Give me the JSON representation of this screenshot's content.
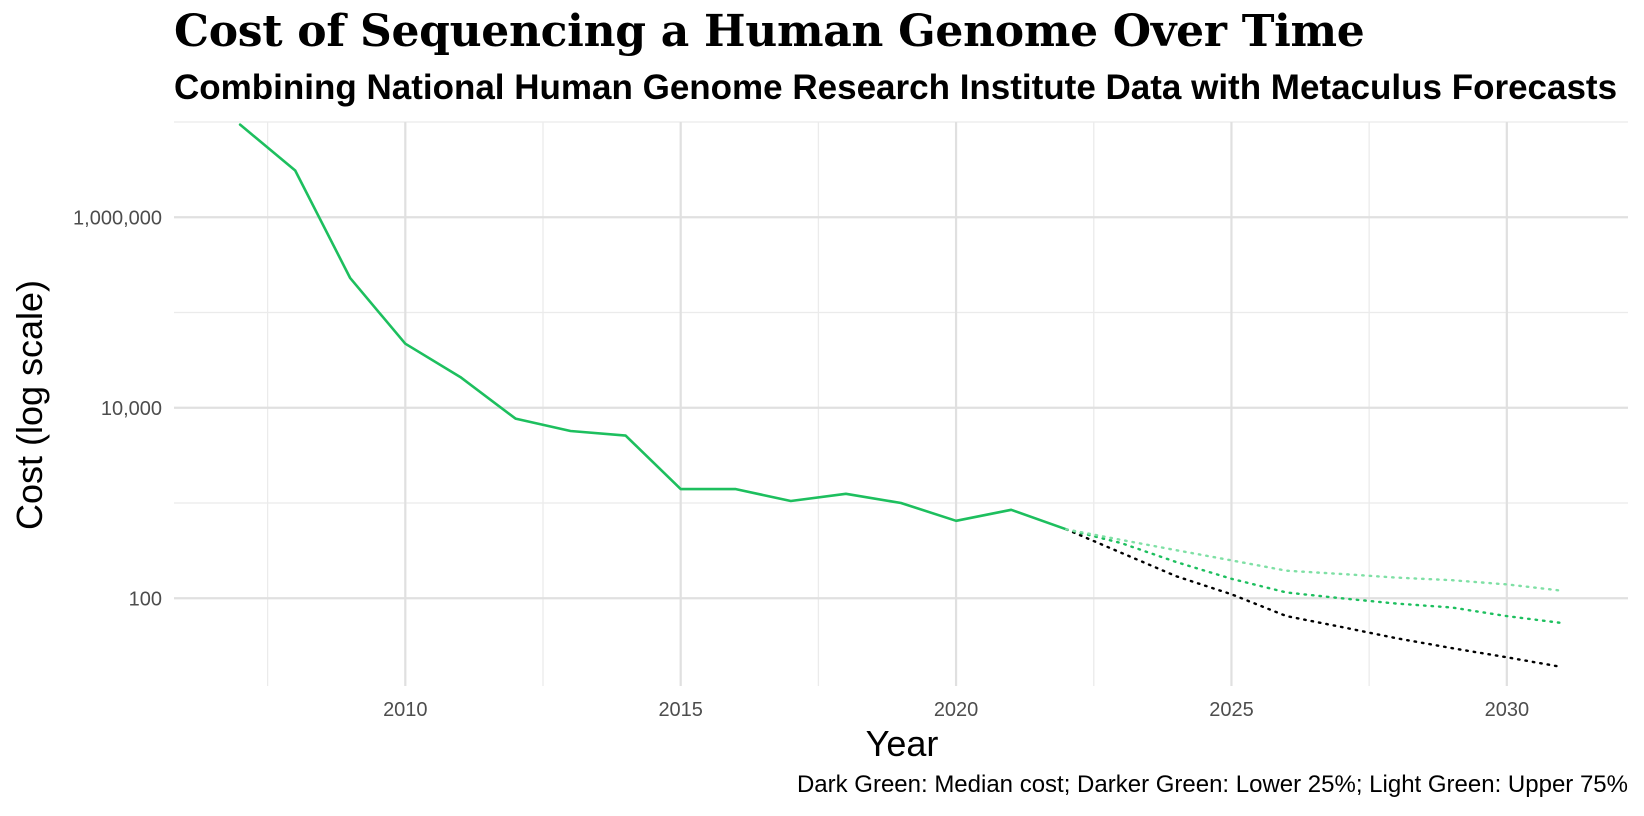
{
  "title": "Cost of Sequencing a Human Genome Over Time",
  "subtitle": "Combining National Human Genome Research Institute Data with Metaculus Forecasts",
  "caption": "Dark Green: Median cost; Darker Green: Lower 25%; Light Green: Upper 75%",
  "chart_data": {
    "type": "line",
    "xlabel": "Year",
    "ylabel": "Cost (log scale)",
    "y_scale": "log10",
    "xlim": [
      2005.8,
      2032.2
    ],
    "ylim": [
      12,
      10000000
    ],
    "x_ticks": [
      2010,
      2015,
      2020,
      2025,
      2030
    ],
    "x_tick_labels": [
      "2010",
      "2015",
      "2020",
      "2025",
      "2030"
    ],
    "y_ticks": [
      100,
      10000,
      1000000
    ],
    "y_tick_labels": [
      "100",
      "10,000",
      "1,000,000"
    ],
    "grid": true,
    "series": [
      {
        "style": "solid",
        "color": "#1dbf5e",
        "x": [
          2007,
          2008,
          2009,
          2010,
          2011,
          2012,
          2013,
          2014,
          2015,
          2016,
          2017,
          2018,
          2019,
          2020,
          2021,
          2022
        ],
        "values": [
          9400000,
          3100000,
          230000,
          47000,
          21000,
          7700,
          5700,
          5100,
          1400,
          1400,
          1050,
          1250,
          1000,
          650,
          850,
          530
        ]
      },
      {
        "style": "dotted",
        "color": "#000000",
        "x": [
          2022,
          2023,
          2024,
          2025,
          2026,
          2027,
          2028,
          2029,
          2030,
          2031
        ],
        "values": [
          530,
          300,
          170,
          110,
          65,
          50,
          38,
          30,
          24,
          19
        ]
      },
      {
        "style": "dotted",
        "color": "#1dbf5e",
        "x": [
          2022,
          2023,
          2024,
          2025,
          2026,
          2027,
          2028,
          2029,
          2030,
          2031
        ],
        "values": [
          530,
          380,
          240,
          160,
          115,
          100,
          88,
          80,
          65,
          55
        ]
      },
      {
        "style": "dotted",
        "color": "#7fe0a5",
        "x": [
          2022,
          2023,
          2024,
          2025,
          2026,
          2027,
          2028,
          2029,
          2030,
          2031
        ],
        "values": [
          530,
          410,
          320,
          250,
          195,
          180,
          165,
          155,
          140,
          120
        ]
      }
    ]
  }
}
